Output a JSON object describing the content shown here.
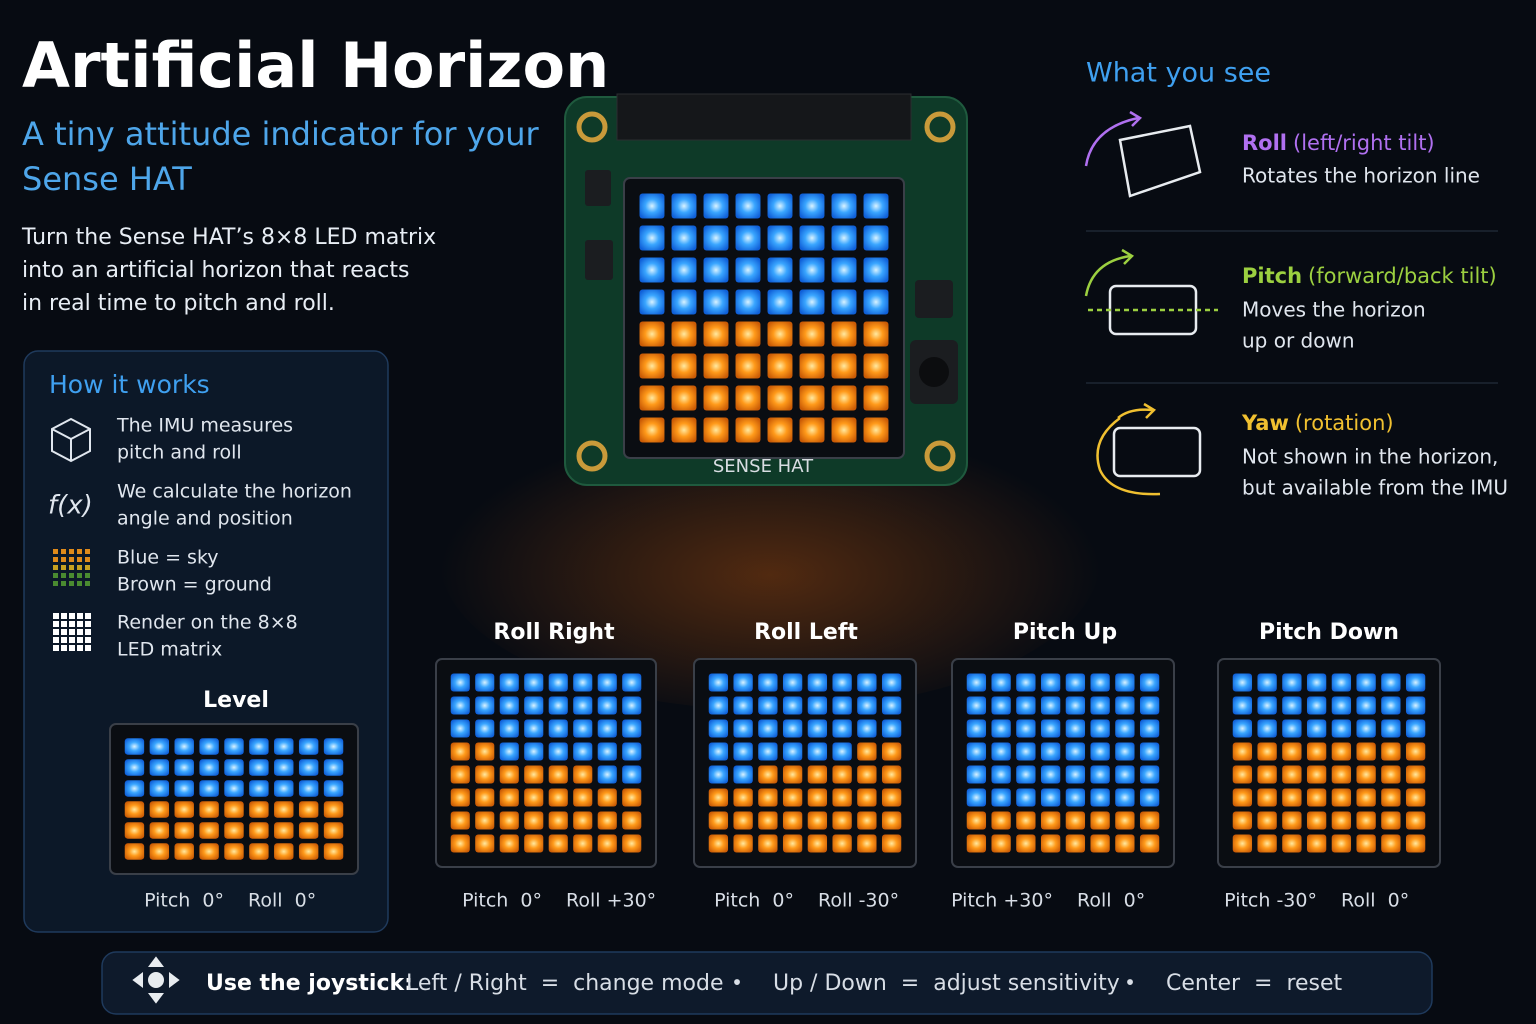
{
  "header": {
    "title": "Artificial Horizon",
    "subtitle_lines": [
      "A tiny attitude indicator for your",
      "Sense HAT"
    ],
    "intro_lines": [
      "Turn the Sense HAT’s 8×8 LED matrix",
      "into an artificial horizon that reacts",
      "in real time to pitch and roll."
    ]
  },
  "how_it_works": {
    "title": "How it works",
    "formula_icon": "f(x)",
    "items": [
      [
        "The IMU measures",
        "pitch and roll"
      ],
      [
        "We calculate the horizon",
        "angle and position"
      ],
      [
        "Blue = sky",
        "Brown = ground"
      ],
      [
        "Render on the 8×8",
        "LED matrix"
      ]
    ]
  },
  "board_label": "SENSE HAT",
  "examples": [
    {
      "title": "Level",
      "pitch": "Pitch  0°",
      "roll": "Roll  0°"
    },
    {
      "title": "Roll Right",
      "pitch": "Pitch  0°",
      "roll": "Roll +30°"
    },
    {
      "title": "Roll Left",
      "pitch": "Pitch  0°",
      "roll": "Roll -30°"
    },
    {
      "title": "Pitch Up",
      "pitch": "Pitch +30°",
      "roll": "Roll  0°"
    },
    {
      "title": "Pitch Down",
      "pitch": "Pitch -30°",
      "roll": "Roll  0°"
    }
  ],
  "what_you_see": {
    "title": "What you see",
    "items": [
      {
        "name": "Roll",
        "detail": "(left/right tilt)",
        "lines": [
          "Rotates the horizon line"
        ]
      },
      {
        "name": "Pitch",
        "detail": "(forward/back tilt)",
        "lines": [
          "Moves the horizon",
          "up or down"
        ]
      },
      {
        "name": "Yaw",
        "detail": "(rotation)",
        "lines": [
          "Not shown in the horizon,",
          "but available from the IMU"
        ]
      }
    ]
  },
  "footer": {
    "label": "Use the joystick:",
    "separator": "•",
    "hints": [
      "Left / Right  =  change mode",
      "Up / Down  =  adjust sensitivity",
      "Center  =  reset"
    ]
  }
}
